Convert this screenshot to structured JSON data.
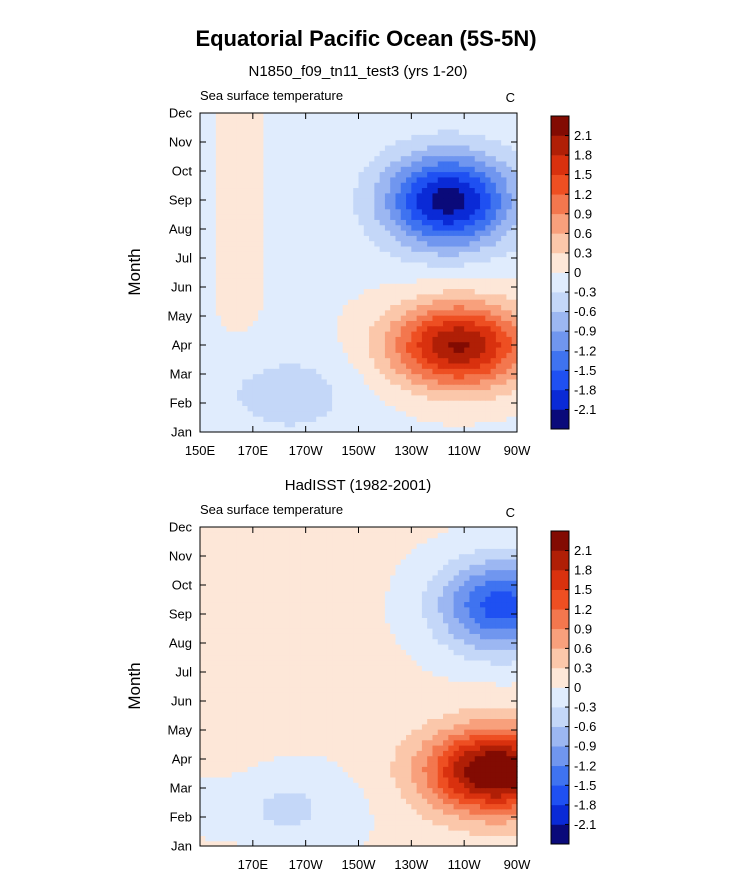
{
  "title": "Equatorial Pacific Ocean (5S-5N)",
  "colors": [
    "#0a0a7a",
    "#0a2ad6",
    "#1f50f2",
    "#3f73f0",
    "#7096ef",
    "#9cb7f2",
    "#c4d7f8",
    "#e0ecfd",
    "#fde7d8",
    "#fbc7aa",
    "#f8a07c",
    "#f3774e",
    "#ee4f22",
    "#d9310e",
    "#b01f06",
    "#820b02"
  ],
  "chart_data": [
    {
      "type": "heatmap",
      "title": "N1850_f09_tn11_test3 (yrs 1-20)",
      "left_label": "Sea surface temperature",
      "right_label": "C",
      "ylabel": "Month",
      "x_ticks": [
        "150E",
        "170E",
        "170W",
        "150W",
        "130W",
        "110W",
        "90W"
      ],
      "y_ticks": [
        "Jan",
        "Feb",
        "Mar",
        "Apr",
        "May",
        "Jun",
        "Jul",
        "Aug",
        "Sep",
        "Oct",
        "Nov",
        "Dec"
      ],
      "xlim": [
        150,
        270
      ],
      "colorbar_labels": [
        "2.1",
        "1.8",
        "1.5",
        "1.2",
        "0.9",
        "0.6",
        "0.3",
        "0",
        "-0.3",
        "-0.6",
        "-0.9",
        "-1.2",
        "-1.5",
        "-1.8",
        "-2.1"
      ],
      "warm_max": 2.2,
      "warm_lon": 248,
      "warm_month": 4.0,
      "cold_min": -2.2,
      "cold_lon": 244,
      "cold_month": 9.0,
      "ridge_base": -0.1
    },
    {
      "type": "heatmap",
      "title": "HadISST (1982-2001)",
      "left_label": "Sea surface temperature",
      "right_label": "C",
      "ylabel": "Month",
      "x_ticks": [
        "",
        "170E",
        "170W",
        "150W",
        "130W",
        "110W",
        "90W"
      ],
      "y_ticks": [
        "Jan",
        "Feb",
        "Mar",
        "Apr",
        "May",
        "Jun",
        "Jul",
        "Aug",
        "Sep",
        "Oct",
        "Nov",
        "Dec"
      ],
      "xlim": [
        150,
        270
      ],
      "colorbar_labels": [
        "2.1",
        "1.8",
        "1.5",
        "1.2",
        "0.9",
        "0.6",
        "0.3",
        "0",
        "-0.3",
        "-0.6",
        "-0.9",
        "-1.2",
        "-1.5",
        "-1.8",
        "-2.1"
      ],
      "warm_max": 2.5,
      "warm_lon": 262,
      "warm_month": 3.6,
      "cold_min": -1.7,
      "cold_lon": 264,
      "cold_month": 9.3,
      "ridge_base": 0.1
    }
  ]
}
